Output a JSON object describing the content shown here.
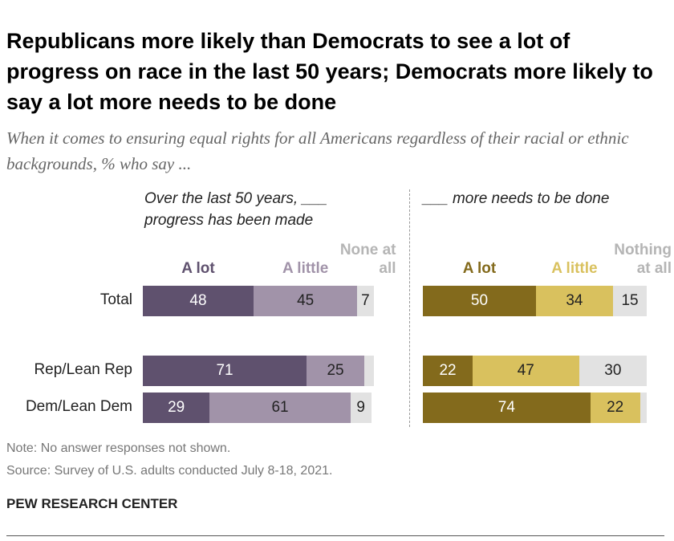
{
  "title": "Republicans more likely than Democrats to see a lot of progress on race in the last 50 years; Democrats more likely to say a lot more needs to be done",
  "subtitle": "When it comes to ensuring equal rights for all Americans regardless of their racial or ethnic backgrounds, % who say ...",
  "note": "Note: No answer responses not shown.",
  "source": "Source: Survey of U.S. adults conducted July 8-18, 2021.",
  "footer": "PEW RESEARCH CENTER",
  "chart_data": [
    {
      "type": "bar",
      "orientation": "horizontal",
      "stacked": true,
      "title": "Over the last 50 years, ___ progress has been made",
      "categories": [
        "Total",
        "Rep/Lean Rep",
        "Dem/Lean Dem"
      ],
      "xlim": [
        0,
        100
      ],
      "series": [
        {
          "name": "A lot",
          "color": "#5f516e",
          "values": [
            48,
            71,
            29
          ]
        },
        {
          "name": "A little",
          "color": "#a193a9",
          "values": [
            45,
            25,
            61
          ]
        },
        {
          "name": "None at all",
          "color": "#e2e2e2",
          "values": [
            7,
            4,
            9
          ],
          "value_labels": [
            "7",
            null,
            "9"
          ]
        }
      ]
    },
    {
      "type": "bar",
      "orientation": "horizontal",
      "stacked": true,
      "title": "___ more needs to be done",
      "xlim": [
        0,
        100
      ],
      "series": [
        {
          "name": "A lot",
          "color": "#836a1c",
          "values": [
            50,
            22,
            74
          ]
        },
        {
          "name": "A little",
          "color": "#d9c15e",
          "values": [
            34,
            47,
            22
          ]
        },
        {
          "name": "Nothing at all",
          "color": "#e2e2e2",
          "values": [
            15,
            30,
            3
          ],
          "value_labels": [
            "15",
            "30",
            null
          ]
        }
      ]
    }
  ]
}
